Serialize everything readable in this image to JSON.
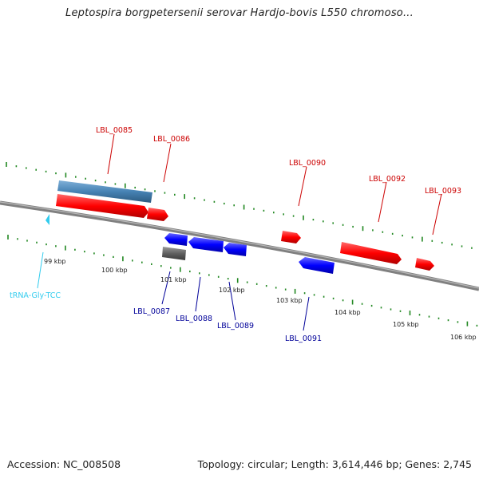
{
  "title": "Leptospira borgpetersenii serovar Hardjo-bovis L550 chromoso...",
  "footer": {
    "accession": "Accession: NC_008508",
    "summary": "Topology: circular; Length: 3,614,446 bp; Genes: 2,745"
  },
  "colors": {
    "forward_gene": "#ff0000",
    "reverse_gene": "#0000ff",
    "forward_label": "#cc0000",
    "reverse_label": "#000099",
    "rna_gene": "#4682b4",
    "pseudo_gene": "#606060",
    "trna": "#33ccee",
    "backbone": "#808080",
    "gc_ticks": "#228822"
  },
  "gene_labels": {
    "lbl0085": "LBL_0085",
    "lbl0086": "LBL_0086",
    "lbl0087": "LBL_0087",
    "lbl0088": "LBL_0088",
    "lbl0089": "LBL_0089",
    "lbl0090": "LBL_0090",
    "lbl0091": "LBL_0091",
    "lbl0092": "LBL_0092",
    "lbl0093": "LBL_0093",
    "trna": "tRNA-Gly-TCC"
  },
  "scale_ticks": [
    "99 kbp",
    "100 kbp",
    "101 kbp",
    "102 kbp",
    "103 kbp",
    "104 kbp",
    "105 kbp",
    "106 kbp"
  ]
}
